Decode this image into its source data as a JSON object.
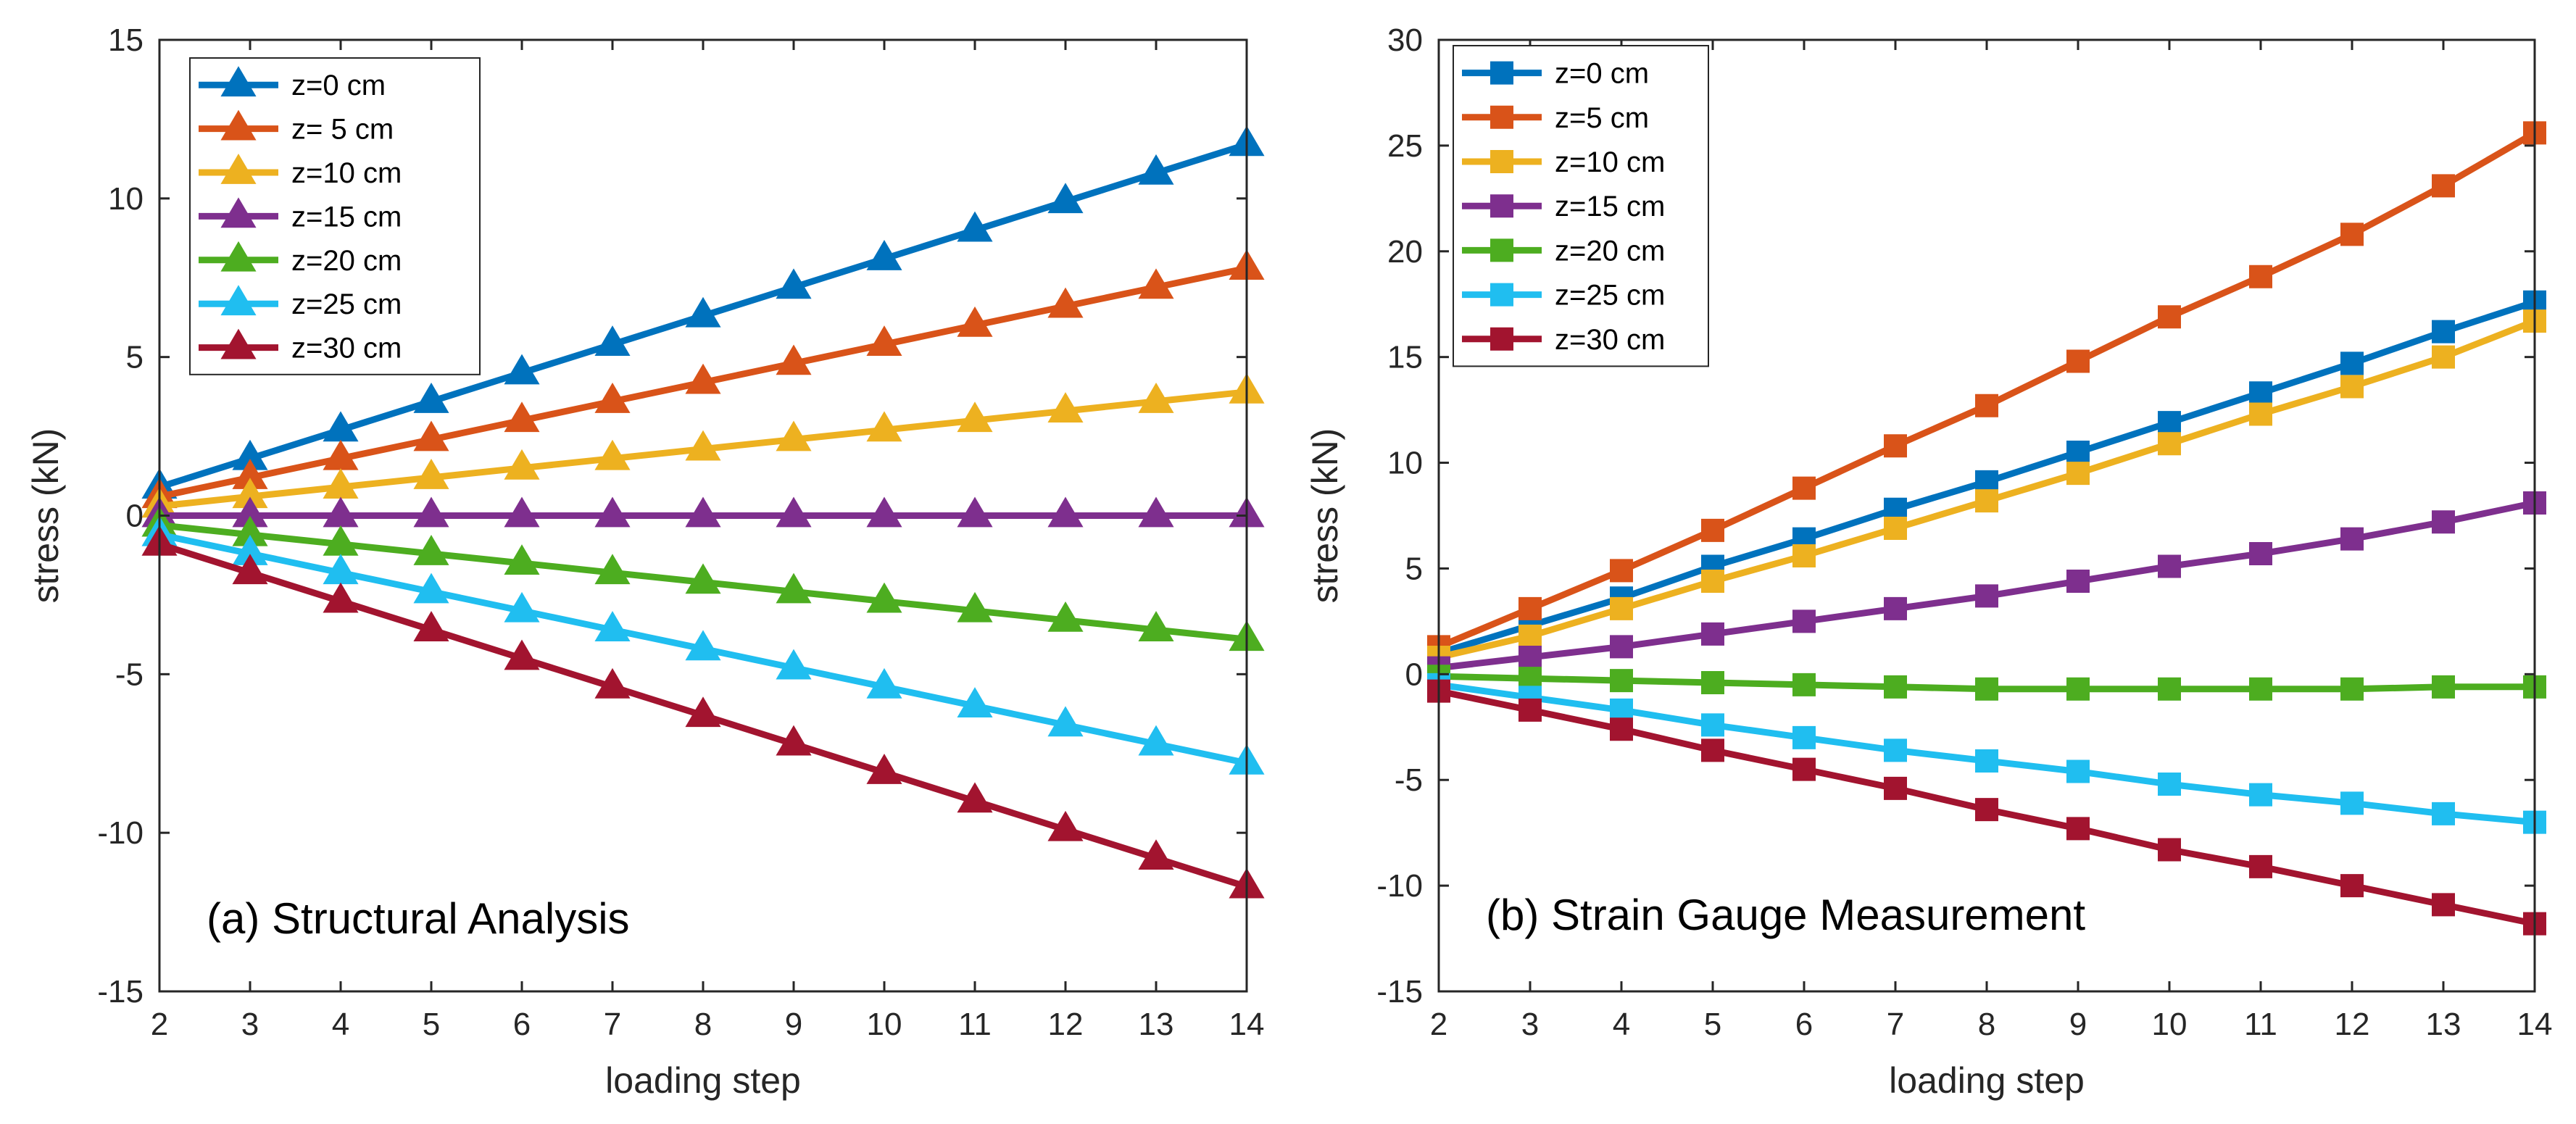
{
  "chart_data": [
    {
      "type": "line",
      "panel_label": "(a) Structural Analysis",
      "xlabel": "loading step",
      "ylabel": "stress (kN)",
      "xlim": [
        2,
        14
      ],
      "ylim": [
        -15,
        15
      ],
      "xticks": [
        2,
        3,
        4,
        5,
        6,
        7,
        8,
        9,
        10,
        11,
        12,
        13,
        14
      ],
      "yticks": [
        -15,
        -10,
        -5,
        0,
        5,
        10,
        15
      ],
      "marker": "triangle",
      "legend_position": "top-left",
      "x": [
        2,
        3,
        4,
        5,
        6,
        7,
        8,
        9,
        10,
        11,
        12,
        13,
        14
      ],
      "series": [
        {
          "name": "z=0 cm",
          "color": "#0072BD",
          "values": [
            0.9,
            1.8,
            2.7,
            3.6,
            4.5,
            5.4,
            6.3,
            7.2,
            8.1,
            9.0,
            9.9,
            10.8,
            11.7
          ]
        },
        {
          "name": "z= 5 cm",
          "color": "#D95319",
          "values": [
            0.6,
            1.2,
            1.8,
            2.4,
            3.0,
            3.6,
            4.2,
            4.8,
            5.4,
            6.0,
            6.6,
            7.2,
            7.8
          ]
        },
        {
          "name": "z=10 cm",
          "color": "#EDB120",
          "values": [
            0.3,
            0.6,
            0.9,
            1.2,
            1.5,
            1.8,
            2.1,
            2.4,
            2.7,
            3.0,
            3.3,
            3.6,
            3.9
          ]
        },
        {
          "name": "z=15 cm",
          "color": "#7E2F8E",
          "values": [
            0,
            0,
            0,
            0,
            0,
            0,
            0,
            0,
            0,
            0,
            0,
            0,
            0
          ]
        },
        {
          "name": "z=20 cm",
          "color": "#4DAD20",
          "values": [
            -0.3,
            -0.6,
            -0.9,
            -1.2,
            -1.5,
            -1.8,
            -2.1,
            -2.4,
            -2.7,
            -3.0,
            -3.3,
            -3.6,
            -3.9
          ]
        },
        {
          "name": "z=25 cm",
          "color": "#20BEF0",
          "values": [
            -0.6,
            -1.2,
            -1.8,
            -2.4,
            -3.0,
            -3.6,
            -4.2,
            -4.8,
            -5.4,
            -6.0,
            -6.6,
            -7.2,
            -7.8
          ]
        },
        {
          "name": "z=30 cm",
          "color": "#A2142F",
          "values": [
            -0.9,
            -1.8,
            -2.7,
            -3.6,
            -4.5,
            -5.4,
            -6.3,
            -7.2,
            -8.1,
            -9.0,
            -9.9,
            -10.8,
            -11.7
          ]
        }
      ]
    },
    {
      "type": "line",
      "panel_label": "(b) Strain Gauge Measurement",
      "xlabel": "loading step",
      "ylabel": "stress (kN)",
      "xlim": [
        2,
        14
      ],
      "ylim": [
        -15,
        30
      ],
      "xticks": [
        2,
        3,
        4,
        5,
        6,
        7,
        8,
        9,
        10,
        11,
        12,
        13,
        14
      ],
      "yticks": [
        -15,
        -10,
        -5,
        0,
        5,
        10,
        15,
        20,
        25,
        30
      ],
      "marker": "square",
      "legend_position": "top-left",
      "x": [
        2,
        3,
        4,
        5,
        6,
        7,
        8,
        9,
        10,
        11,
        12,
        13,
        14
      ],
      "series": [
        {
          "name": "z=0 cm",
          "color": "#0072BD",
          "values": [
            1.0,
            2.3,
            3.6,
            5.1,
            6.4,
            7.8,
            9.1,
            10.5,
            11.9,
            13.3,
            14.7,
            16.2,
            17.6
          ]
        },
        {
          "name": "z=5 cm",
          "color": "#D95319",
          "values": [
            1.3,
            3.1,
            4.9,
            6.8,
            8.8,
            10.8,
            12.7,
            14.8,
            16.9,
            18.8,
            20.8,
            23.1,
            25.6
          ]
        },
        {
          "name": "z=10 cm",
          "color": "#EDB120",
          "values": [
            0.8,
            1.8,
            3.1,
            4.4,
            5.6,
            6.9,
            8.2,
            9.5,
            10.9,
            12.3,
            13.6,
            15.0,
            16.7
          ]
        },
        {
          "name": "z=15 cm",
          "color": "#7E2F8E",
          "values": [
            0.3,
            0.8,
            1.3,
            1.9,
            2.5,
            3.1,
            3.7,
            4.4,
            5.1,
            5.7,
            6.4,
            7.2,
            8.1
          ]
        },
        {
          "name": "z=20 cm",
          "color": "#4DAD20",
          "values": [
            -0.1,
            -0.2,
            -0.3,
            -0.4,
            -0.5,
            -0.6,
            -0.7,
            -0.7,
            -0.7,
            -0.7,
            -0.7,
            -0.6,
            -0.6
          ]
        },
        {
          "name": "z=25 cm",
          "color": "#20BEF0",
          "values": [
            -0.5,
            -1.1,
            -1.7,
            -2.4,
            -3.0,
            -3.6,
            -4.1,
            -4.6,
            -5.2,
            -5.7,
            -6.1,
            -6.6,
            -7.0
          ]
        },
        {
          "name": "z=30 cm",
          "color": "#A2142F",
          "values": [
            -0.8,
            -1.7,
            -2.6,
            -3.6,
            -4.5,
            -5.4,
            -6.4,
            -7.3,
            -8.3,
            -9.1,
            -10.0,
            -10.9,
            -11.8
          ]
        }
      ]
    }
  ]
}
